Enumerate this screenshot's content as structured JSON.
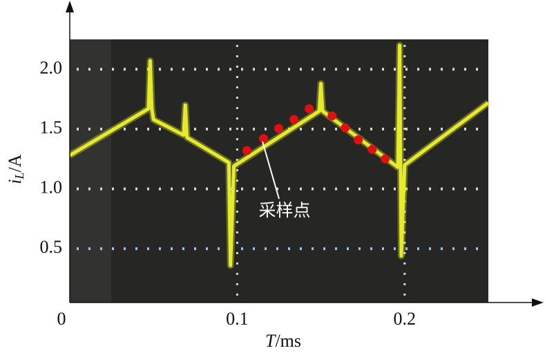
{
  "chart_data": {
    "type": "line",
    "x_label": {
      "italic": "T",
      "rest": "/ms"
    },
    "y_label": {
      "italic": "i",
      "sub": "L",
      "rest": "/A"
    },
    "xlim": [
      0,
      0.25
    ],
    "ylim": [
      0.05,
      2.25
    ],
    "xticks": [
      0,
      0.1,
      0.2
    ],
    "yticks": [
      0.5,
      {
        "value": 1.0,
        "label": "1.0"
      },
      1.5,
      {
        "value": 2.0,
        "label": "2.0"
      }
    ],
    "grid": true,
    "series": [
      {
        "color": "#e6ea2c",
        "mode": "lines",
        "x": [
          0,
          0.047,
          0.048,
          0.049,
          0.05,
          0.068,
          0.069,
          0.07,
          0.095,
          0.096,
          0.098,
          0.149,
          0.15,
          0.151,
          0.196,
          0.197,
          0.198,
          0.2,
          0.25
        ],
        "values": [
          1.28,
          1.67,
          2.07,
          1.67,
          1.58,
          1.45,
          1.7,
          1.43,
          1.22,
          0.36,
          1.19,
          1.65,
          1.88,
          1.65,
          1.18,
          2.2,
          0.44,
          1.2,
          1.72
        ]
      },
      {
        "color": "#e01010",
        "mode": "markers",
        "x": [
          0.1058,
          0.1157,
          0.1248,
          0.1339,
          0.143,
          0.1566,
          0.1645,
          0.1723,
          0.1806,
          0.1884
        ],
        "values": [
          1.32,
          1.42,
          1.505,
          1.58,
          1.67,
          1.61,
          1.51,
          1.41,
          1.33,
          1.25
        ]
      }
    ],
    "annotation": "采样点"
  }
}
